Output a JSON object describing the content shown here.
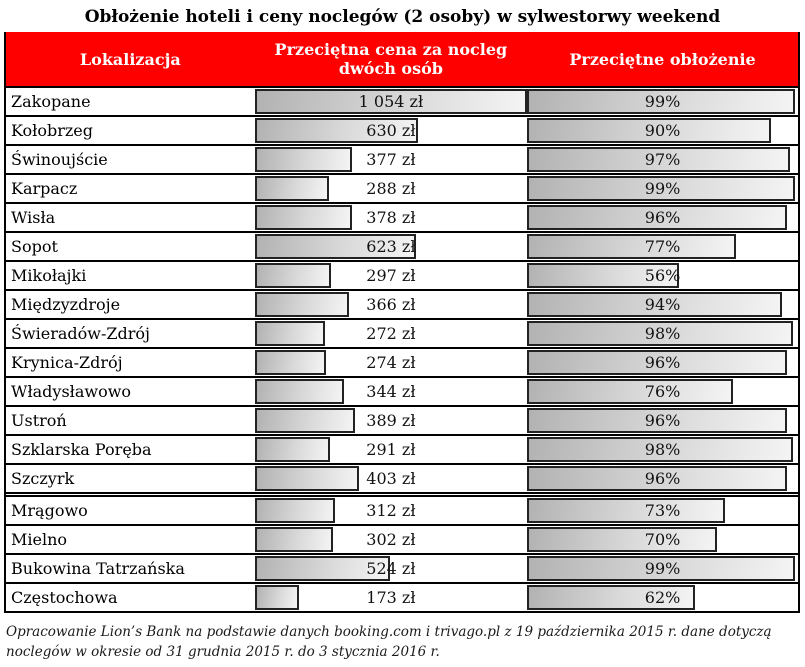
{
  "title": "Obłożenie hoteli i ceny noclegów (2 osoby) w sylwestorwy weekend",
  "colors": {
    "header_bg": "#fe0000",
    "header_text": "#ffffff",
    "table_border": "#000000",
    "bar_border": "#222222",
    "bar_fill_start": "#b2b2b2",
    "bar_fill_end": "#f4f4f4"
  },
  "table": {
    "headers": [
      "Lokalizacja",
      "Przeciętna cena za nocleg dwóch osób",
      "Przeciętne obłożenie"
    ],
    "price_axis_max": 1054,
    "thick_divider_after_row_index": 13,
    "rows": [
      {
        "location": "Zakopane",
        "price": "1 054 zł",
        "price_value": 1054,
        "occupancy": "99%",
        "occupancy_value": 99
      },
      {
        "location": "Kołobrzeg",
        "price": "630 zł",
        "price_value": 630,
        "occupancy": "90%",
        "occupancy_value": 90
      },
      {
        "location": "Świnoujście",
        "price": "377 zł",
        "price_value": 377,
        "occupancy": "97%",
        "occupancy_value": 97
      },
      {
        "location": "Karpacz",
        "price": "288 zł",
        "price_value": 288,
        "occupancy": "99%",
        "occupancy_value": 99
      },
      {
        "location": "Wisła",
        "price": "378 zł",
        "price_value": 378,
        "occupancy": "96%",
        "occupancy_value": 96
      },
      {
        "location": "Sopot",
        "price": "623 zł",
        "price_value": 623,
        "occupancy": "77%",
        "occupancy_value": 77
      },
      {
        "location": "Mikołajki",
        "price": "297 zł",
        "price_value": 297,
        "occupancy": "56%",
        "occupancy_value": 56
      },
      {
        "location": "Międzyzdroje",
        "price": "366 zł",
        "price_value": 366,
        "occupancy": "94%",
        "occupancy_value": 94
      },
      {
        "location": "Świeradów-Zdrój",
        "price": "272 zł",
        "price_value": 272,
        "occupancy": "98%",
        "occupancy_value": 98
      },
      {
        "location": "Krynica-Zdrój",
        "price": "274 zł",
        "price_value": 274,
        "occupancy": "96%",
        "occupancy_value": 96
      },
      {
        "location": "Władysławowo",
        "price": "344 zł",
        "price_value": 344,
        "occupancy": "76%",
        "occupancy_value": 76
      },
      {
        "location": "Ustroń",
        "price": "389 zł",
        "price_value": 389,
        "occupancy": "96%",
        "occupancy_value": 96
      },
      {
        "location": "Szklarska Poręba",
        "price": "291 zł",
        "price_value": 291,
        "occupancy": "98%",
        "occupancy_value": 98
      },
      {
        "location": "Szczyrk",
        "price": "403 zł",
        "price_value": 403,
        "occupancy": "96%",
        "occupancy_value": 96
      },
      {
        "location": "Mrągowo",
        "price": "312 zł",
        "price_value": 312,
        "occupancy": "73%",
        "occupancy_value": 73
      },
      {
        "location": "Mielno",
        "price": "302 zł",
        "price_value": 302,
        "occupancy": "70%",
        "occupancy_value": 70
      },
      {
        "location": "Bukowina Tatrzańska",
        "price": "524 zł",
        "price_value": 524,
        "occupancy": "99%",
        "occupancy_value": 99
      },
      {
        "location": "Częstochowa",
        "price": "173 zł",
        "price_value": 173,
        "occupancy": "62%",
        "occupancy_value": 62
      }
    ]
  },
  "footer": "Opracowanie Lion’s Bank na podstawie danych booking.com i trivago.pl z 19 października 2015 r. dane dotyczą noclegów w okresie od 31 grudnia 2015 r. do 3 stycznia 2016 r.",
  "chart_data": {
    "type": "bar",
    "orientation": "horizontal",
    "title": "Obłożenie hoteli i ceny noclegów (2 osoby) w sylwestorwy weekend",
    "categories": [
      "Zakopane",
      "Kołobrzeg",
      "Świnoujście",
      "Karpacz",
      "Wisła",
      "Sopot",
      "Mikołajki",
      "Międzyzdroje",
      "Świeradów-Zdrój",
      "Krynica-Zdrój",
      "Władysławowo",
      "Ustroń",
      "Szklarska Poręba",
      "Szczyrk",
      "Mrągowo",
      "Mielno",
      "Bukowina Tatrzańska",
      "Częstochowa"
    ],
    "series": [
      {
        "name": "Przeciętna cena za nocleg dwóch osób (zł)",
        "values": [
          1054,
          630,
          377,
          288,
          378,
          623,
          297,
          366,
          272,
          274,
          344,
          389,
          291,
          403,
          312,
          302,
          524,
          173
        ],
        "axis_range": [
          0,
          1054
        ]
      },
      {
        "name": "Przeciętne obłożenie (%)",
        "values": [
          99,
          90,
          97,
          99,
          96,
          77,
          56,
          94,
          98,
          96,
          76,
          96,
          98,
          96,
          73,
          70,
          99,
          62
        ],
        "axis_range": [
          0,
          100
        ]
      }
    ],
    "legend_position": "none",
    "grid": false,
    "layout_note": "bars embedded per-row inside a table; value labels centered in each cell"
  }
}
